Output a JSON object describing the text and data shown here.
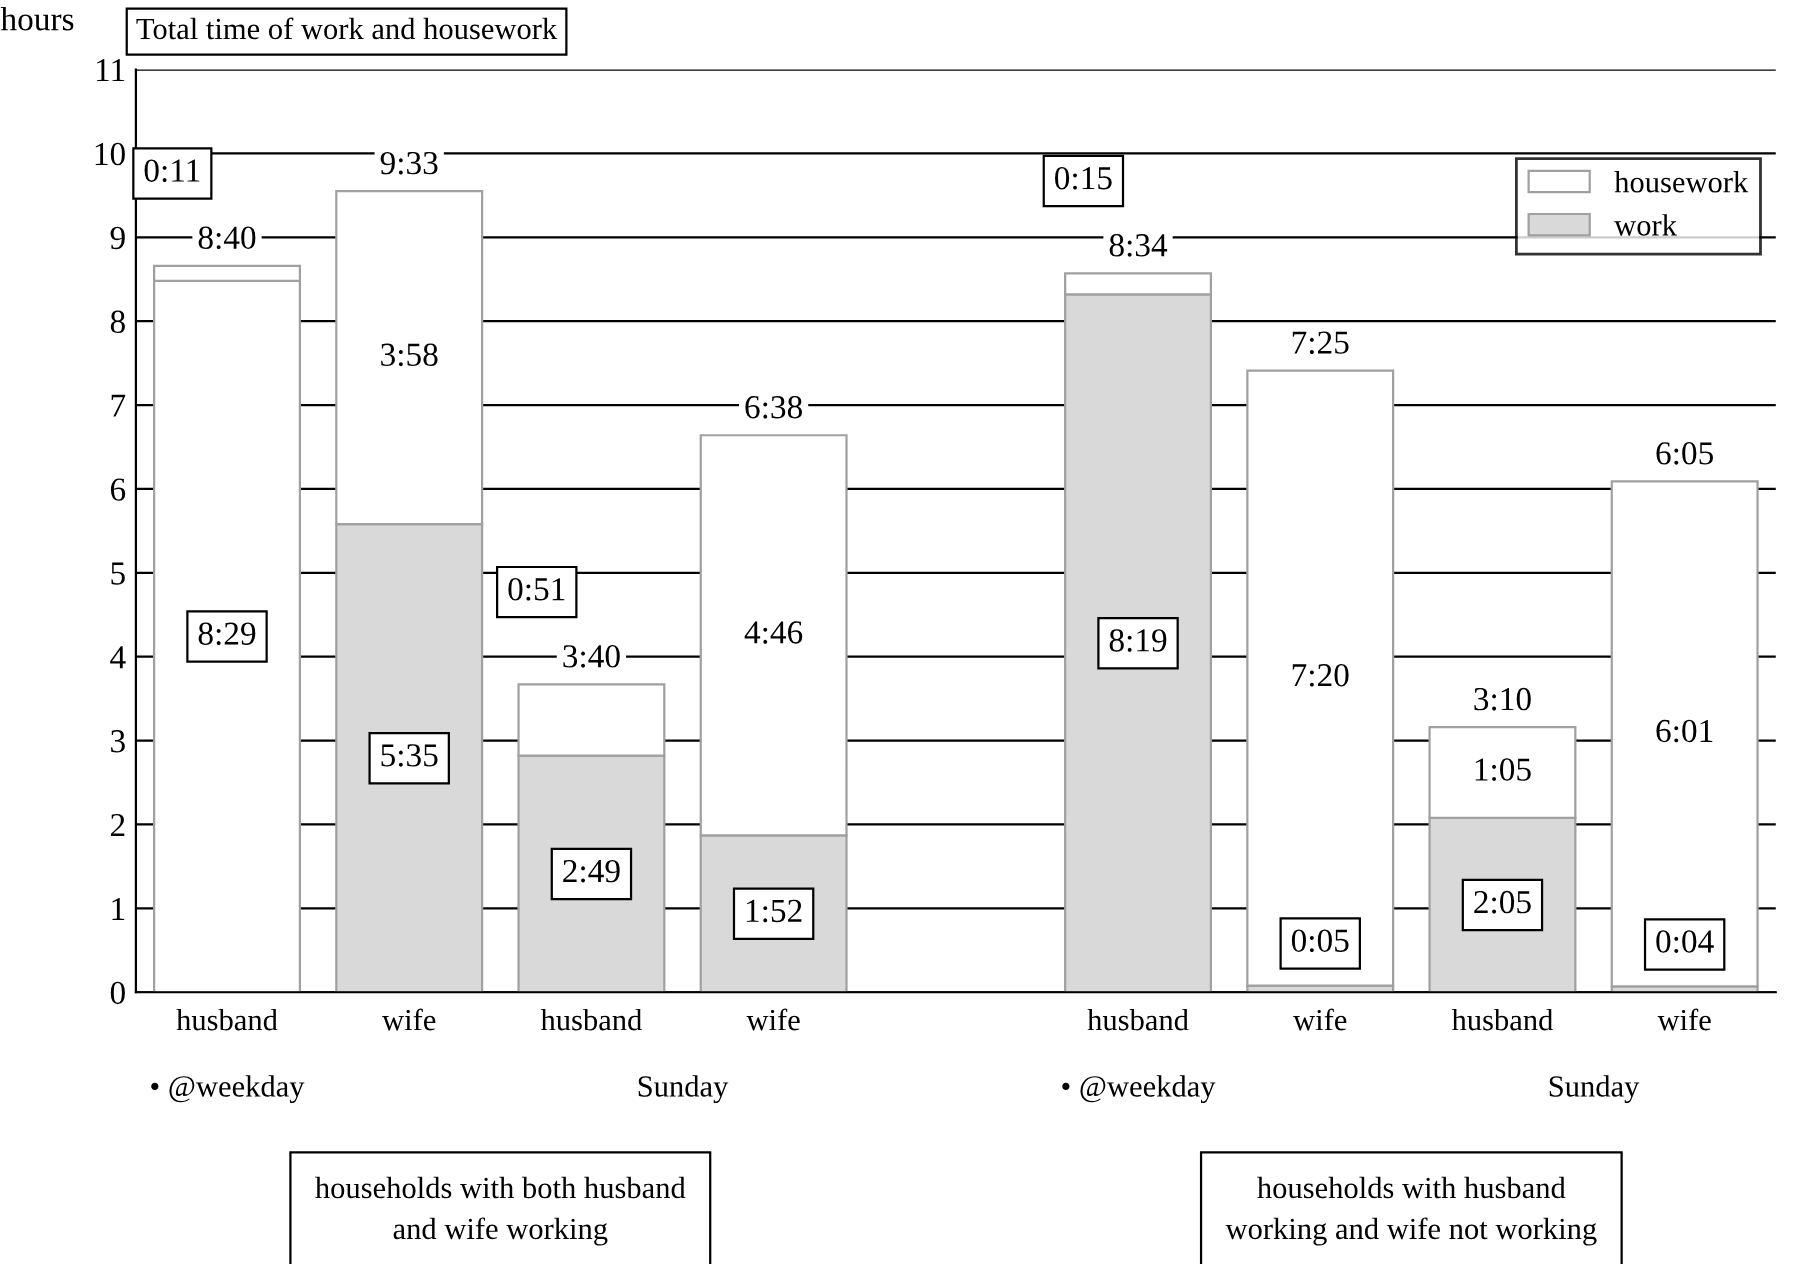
{
  "chart_data": {
    "type": "bar",
    "title": "Total time of work and housework",
    "ylabel": "hours",
    "categories": [
      "husband",
      "wife",
      "husband",
      "wife",
      null,
      "husband",
      "wife",
      "husband",
      "wife"
    ],
    "stacked": true,
    "series": [
      {
        "name": "work",
        "color": "#d9d9d9",
        "colors": [
          "#ffffff",
          "#d9d9d9",
          "#d9d9d9",
          "#d9d9d9",
          "#d9d9d9",
          "#d9d9d9",
          "#d9d9d9",
          "#d9d9d9",
          "#d9d9d9"
        ],
        "values": [
          8.48,
          5.58,
          2.82,
          1.87,
          null,
          8.32,
          0.08,
          2.08,
          0.07
        ],
        "value_labels": [
          "8:29",
          "5:35",
          "2:49",
          "1:52",
          null,
          "8:19",
          "0:05",
          "2:05",
          "0:04"
        ]
      },
      {
        "name": "housework",
        "color": "#ffffff",
        "values": [
          0.18,
          3.97,
          0.85,
          4.77,
          null,
          0.25,
          7.33,
          1.08,
          6.02
        ],
        "value_labels": [
          "0:11",
          "3:58",
          "0:51",
          "4:46",
          null,
          "0:15",
          "7:20",
          "1:05",
          "6:01"
        ]
      }
    ],
    "totals": [
      "8:40",
      "9:33",
      "3:40",
      "6:38",
      null,
      "8:34",
      "7:25",
      "3:10",
      "6:05"
    ],
    "ylim": [
      0,
      11
    ],
    "yticks": [
      0,
      1,
      2,
      3,
      4,
      5,
      6,
      7,
      8,
      9,
      10,
      11
    ],
    "grid": "y",
    "legend": "top right",
    "annotations": [
      "• @weekday",
      "Sunday",
      "• @weekday",
      "Sunday",
      "households with both husband\nand wife working",
      "households with husband\nworking and wife not working"
    ]
  }
}
